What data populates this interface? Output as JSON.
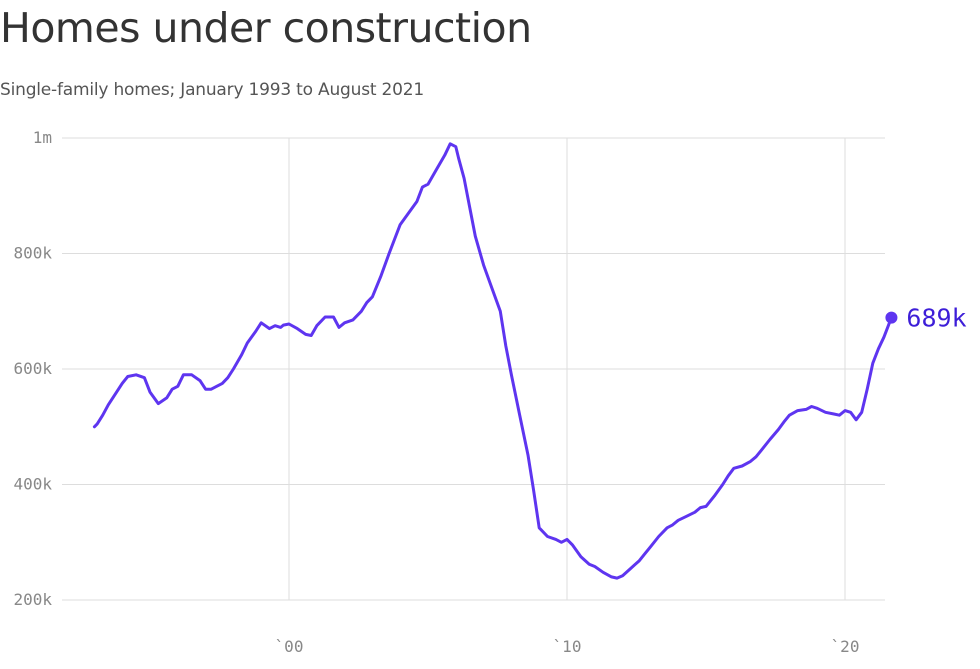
{
  "colors": {
    "line": "#5e35f0",
    "endlabel": "#3d1ed8",
    "grid": "#dddddd",
    "text": "#333333"
  },
  "chart_data": {
    "type": "line",
    "title": "Homes under construction",
    "subtitle": "Single-family homes; January 1993 to August 2021",
    "xlabel": "",
    "ylabel": "",
    "ylim": [
      200000,
      1000000
    ],
    "xlim": [
      1993,
      2021.67
    ],
    "grid": true,
    "y_ticks": [
      {
        "value": 1000000,
        "label": "1m"
      },
      {
        "value": 800000,
        "label": "800k"
      },
      {
        "value": 600000,
        "label": "600k"
      },
      {
        "value": 400000,
        "label": "400k"
      },
      {
        "value": 200000,
        "label": "200k"
      }
    ],
    "x_ticks": [
      {
        "value": 2000,
        "label": "`00"
      },
      {
        "value": 2010,
        "label": "`10"
      },
      {
        "value": 2020,
        "label": "`20"
      }
    ],
    "end_label": "689k",
    "series": [
      {
        "name": "",
        "x": [
          1993.0,
          1993.1,
          1993.3,
          1993.5,
          1993.8,
          1994.0,
          1994.2,
          1994.5,
          1994.8,
          1995.0,
          1995.3,
          1995.6,
          1995.8,
          1996.0,
          1996.2,
          1996.5,
          1996.8,
          1997.0,
          1997.2,
          1997.4,
          1997.6,
          1997.8,
          1998.0,
          1998.3,
          1998.5,
          1998.8,
          1999.0,
          1999.3,
          1999.5,
          1999.7,
          1999.8,
          2000.0,
          2000.3,
          2000.6,
          2000.8,
          2001.0,
          2001.3,
          2001.6,
          2001.8,
          2002.0,
          2002.3,
          2002.6,
          2002.8,
          2003.0,
          2003.3,
          2003.6,
          2003.8,
          2004.0,
          2004.3,
          2004.6,
          2004.8,
          2005.0,
          2005.3,
          2005.6,
          2005.8,
          2006.0,
          2006.1,
          2006.3,
          2006.5,
          2006.7,
          2007.0,
          2007.3,
          2007.6,
          2007.8,
          2008.0,
          2008.3,
          2008.6,
          2008.8,
          2009.0,
          2009.3,
          2009.6,
          2009.8,
          2010.0,
          2010.2,
          2010.5,
          2010.8,
          2011.0,
          2011.3,
          2011.6,
          2011.8,
          2012.0,
          2012.3,
          2012.6,
          2012.8,
          2013.0,
          2013.3,
          2013.6,
          2013.8,
          2014.0,
          2014.3,
          2014.6,
          2014.8,
          2015.0,
          2015.3,
          2015.6,
          2015.8,
          2016.0,
          2016.3,
          2016.6,
          2016.8,
          2017.0,
          2017.3,
          2017.6,
          2017.8,
          2018.0,
          2018.3,
          2018.6,
          2018.8,
          2019.0,
          2019.3,
          2019.6,
          2019.8,
          2020.0,
          2020.2,
          2020.4,
          2020.6,
          2020.8,
          2021.0,
          2021.2,
          2021.4,
          2021.67
        ],
        "values": [
          500000,
          505000,
          520000,
          538000,
          560000,
          575000,
          587000,
          590000,
          585000,
          560000,
          540000,
          550000,
          565000,
          570000,
          590000,
          590000,
          580000,
          565000,
          565000,
          570000,
          575000,
          585000,
          600000,
          625000,
          645000,
          665000,
          680000,
          670000,
          675000,
          672000,
          676000,
          678000,
          670000,
          660000,
          658000,
          675000,
          690000,
          690000,
          672000,
          680000,
          685000,
          700000,
          715000,
          725000,
          760000,
          800000,
          825000,
          850000,
          870000,
          890000,
          915000,
          920000,
          945000,
          970000,
          990000,
          985000,
          965000,
          930000,
          880000,
          830000,
          780000,
          740000,
          700000,
          640000,
          590000,
          520000,
          450000,
          390000,
          325000,
          310000,
          305000,
          300000,
          305000,
          295000,
          275000,
          262000,
          258000,
          248000,
          240000,
          238000,
          242000,
          255000,
          268000,
          280000,
          292000,
          310000,
          325000,
          330000,
          338000,
          345000,
          352000,
          360000,
          362000,
          380000,
          400000,
          415000,
          428000,
          432000,
          440000,
          448000,
          460000,
          478000,
          495000,
          508000,
          520000,
          528000,
          530000,
          535000,
          532000,
          525000,
          522000,
          520000,
          528000,
          525000,
          512000,
          525000,
          565000,
          610000,
          635000,
          655000,
          689000
        ]
      }
    ]
  }
}
